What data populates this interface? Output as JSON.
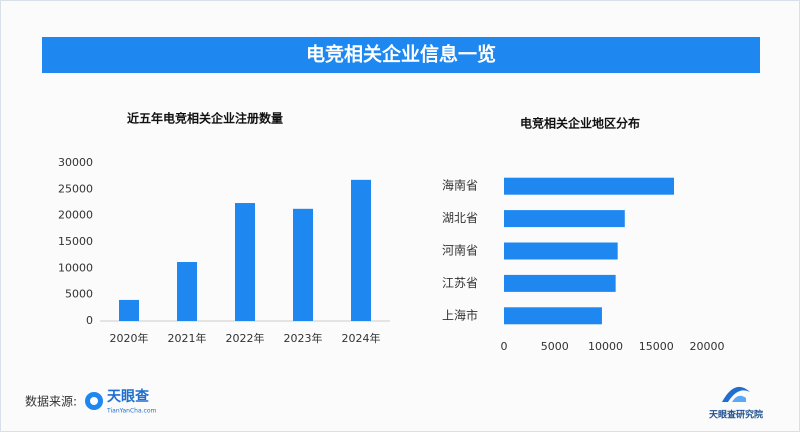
{
  "header": {
    "title": "电竞相关企业信息一览"
  },
  "chart_data": [
    {
      "type": "bar",
      "title": "近五年电竞相关企业注册数量",
      "color": "#1e88f0",
      "categories": [
        "2020年",
        "2021年",
        "2022年",
        "2023年",
        "2024年"
      ],
      "values": [
        4000,
        11200,
        22400,
        21300,
        26800
      ],
      "ylim": [
        0,
        30000
      ],
      "yticks": [
        0,
        5000,
        10000,
        15000,
        20000,
        25000,
        30000
      ]
    },
    {
      "type": "bar",
      "orientation": "horizontal",
      "title": "电竞相关企业地区分布",
      "color": "#1e88f0",
      "categories": [
        "海南省",
        "湖北省",
        "河南省",
        "江苏省",
        "上海市"
      ],
      "values": [
        16750,
        11900,
        11200,
        11000,
        9650
      ],
      "xlim": [
        0,
        20000
      ],
      "xticks": [
        0,
        5000,
        10000,
        15000,
        20000
      ]
    }
  ],
  "footer": {
    "source_label": "数据来源:",
    "source_name": "天眼查",
    "source_site": "TianYanCha.com",
    "brand": "天眼查研究院"
  }
}
